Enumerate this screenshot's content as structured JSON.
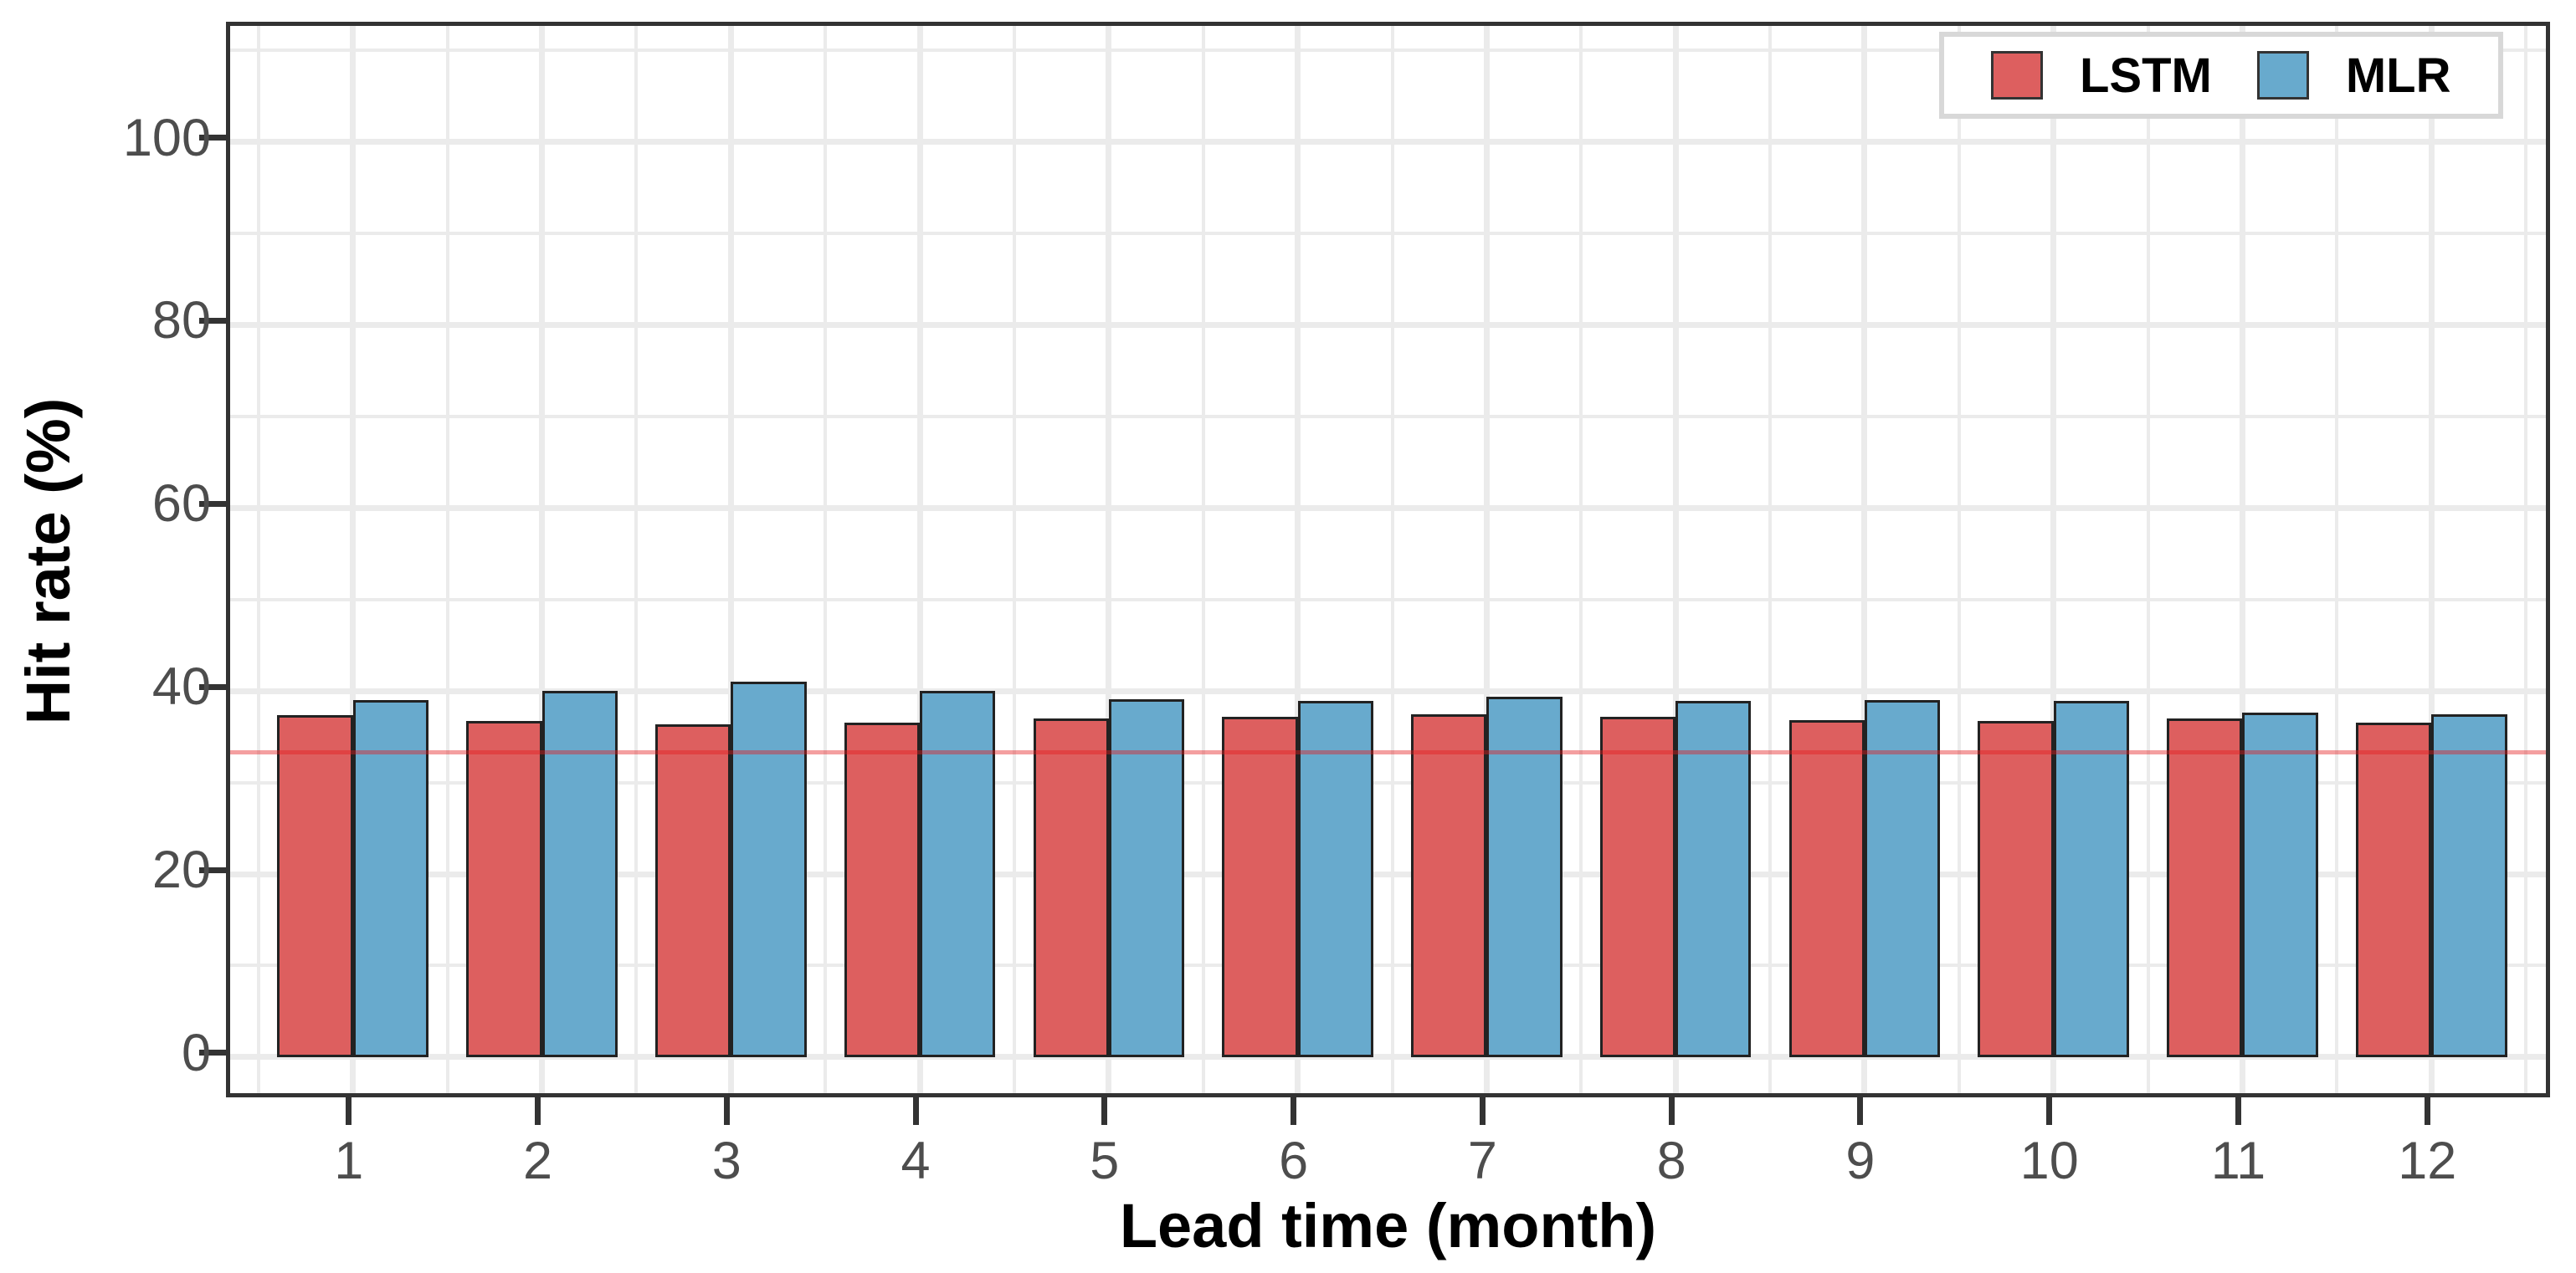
{
  "chart_data": {
    "type": "bar",
    "title": "",
    "xlabel": "Lead time (month)",
    "ylabel": "Hit rate (%)",
    "categories": [
      "1",
      "2",
      "3",
      "4",
      "5",
      "6",
      "7",
      "8",
      "9",
      "10",
      "11",
      "12"
    ],
    "series": [
      {
        "name": "LSTM",
        "color": "#DD5F5F",
        "values": [
          37.4,
          36.7,
          36.4,
          36.5,
          37.0,
          37.2,
          37.5,
          37.2,
          36.8,
          36.7,
          37.0,
          36.5
        ]
      },
      {
        "name": "MLR",
        "color": "#68AACD",
        "values": [
          39.0,
          40.0,
          41.0,
          40.0,
          39.1,
          38.9,
          39.4,
          38.9,
          39.0,
          38.9,
          37.6,
          37.5
        ]
      }
    ],
    "reference_line": {
      "value": 33.3,
      "color": "#E41A1C",
      "alpha": 0.42
    },
    "yticks": [
      0,
      20,
      40,
      60,
      80,
      100
    ],
    "yticks_minor": [
      10,
      30,
      50,
      70,
      90,
      110
    ],
    "ylim": [
      -4.85,
      112.66
    ],
    "grid": true,
    "legend_position": "top-right",
    "colors": {
      "grid": "#EBEBEB",
      "tick_label": "#4D4D4D",
      "axis_title": "#000000",
      "panel_border": "#333333",
      "legend_border": "#D8D8D8",
      "bar_border": "#222222",
      "background": "#FFFFFF"
    }
  }
}
